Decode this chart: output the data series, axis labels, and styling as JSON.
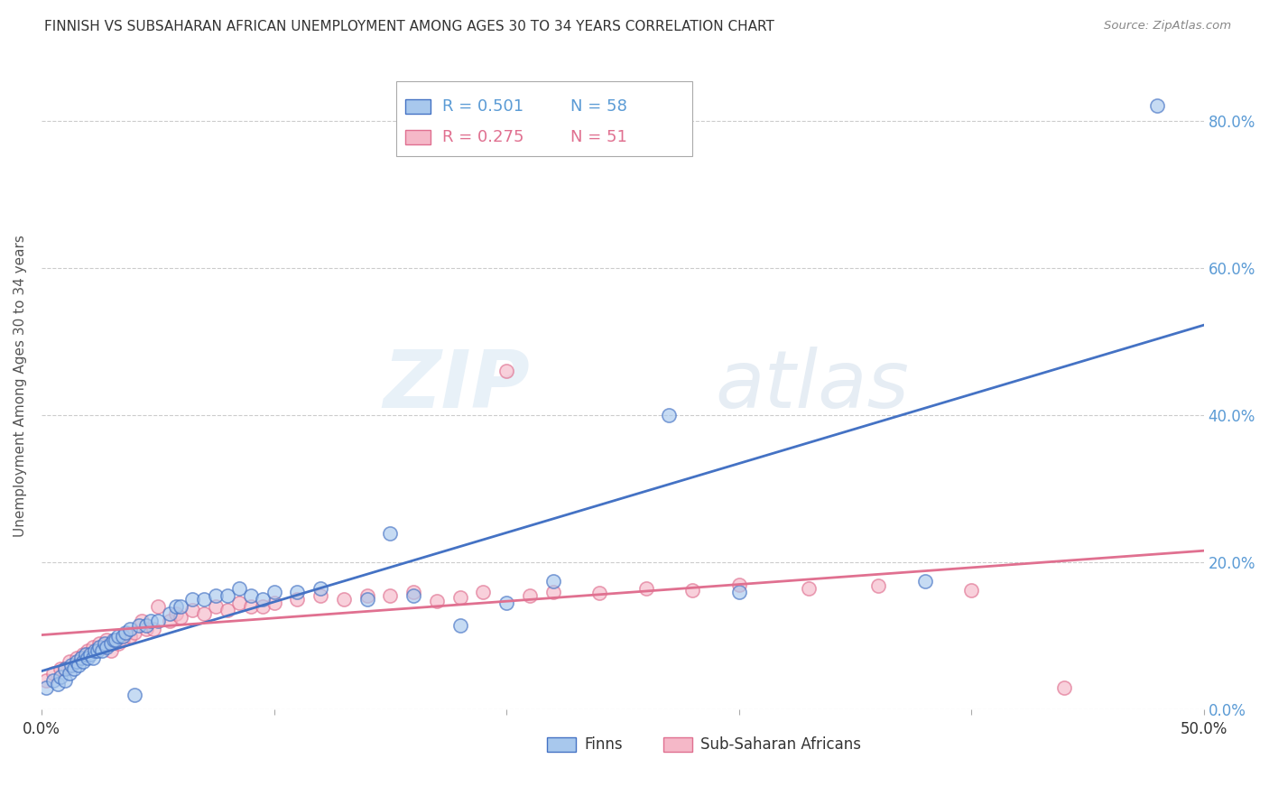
{
  "title": "FINNISH VS SUBSAHARAN AFRICAN UNEMPLOYMENT AMONG AGES 30 TO 34 YEARS CORRELATION CHART",
  "source": "Source: ZipAtlas.com",
  "ylabel": "Unemployment Among Ages 30 to 34 years",
  "xlim": [
    0.0,
    0.5
  ],
  "ylim": [
    0.0,
    0.88
  ],
  "xticks": [
    0.0,
    0.1,
    0.2,
    0.3,
    0.4,
    0.5
  ],
  "yticks": [
    0.0,
    0.2,
    0.4,
    0.6,
    0.8
  ],
  "legend_r_finns": "R = 0.501",
  "legend_n_finns": "N = 58",
  "legend_r_african": "R = 0.275",
  "legend_n_african": "N = 51",
  "color_finns": "#a8c8ed",
  "color_african": "#f5b8c8",
  "color_finns_line": "#4472c4",
  "color_african_line": "#e07090",
  "watermark_zip": "ZIP",
  "watermark_atlas": "atlas",
  "finns_x": [
    0.002,
    0.005,
    0.007,
    0.008,
    0.01,
    0.01,
    0.012,
    0.013,
    0.014,
    0.015,
    0.016,
    0.017,
    0.018,
    0.019,
    0.02,
    0.021,
    0.022,
    0.023,
    0.024,
    0.025,
    0.026,
    0.027,
    0.028,
    0.03,
    0.031,
    0.032,
    0.033,
    0.035,
    0.036,
    0.038,
    0.04,
    0.042,
    0.045,
    0.047,
    0.05,
    0.055,
    0.058,
    0.06,
    0.065,
    0.07,
    0.075,
    0.08,
    0.085,
    0.09,
    0.095,
    0.1,
    0.11,
    0.12,
    0.14,
    0.15,
    0.16,
    0.18,
    0.2,
    0.22,
    0.27,
    0.3,
    0.38,
    0.48
  ],
  "finns_y": [
    0.03,
    0.04,
    0.035,
    0.045,
    0.04,
    0.055,
    0.05,
    0.06,
    0.055,
    0.065,
    0.06,
    0.07,
    0.065,
    0.075,
    0.07,
    0.075,
    0.07,
    0.08,
    0.08,
    0.085,
    0.08,
    0.09,
    0.085,
    0.09,
    0.095,
    0.095,
    0.1,
    0.1,
    0.105,
    0.11,
    0.02,
    0.115,
    0.115,
    0.12,
    0.12,
    0.13,
    0.14,
    0.14,
    0.15,
    0.15,
    0.155,
    0.155,
    0.165,
    0.155,
    0.15,
    0.16,
    0.16,
    0.165,
    0.15,
    0.24,
    0.155,
    0.115,
    0.145,
    0.175,
    0.4,
    0.16,
    0.175,
    0.82
  ],
  "african_x": [
    0.002,
    0.005,
    0.008,
    0.01,
    0.012,
    0.015,
    0.018,
    0.02,
    0.022,
    0.025,
    0.028,
    0.03,
    0.033,
    0.035,
    0.038,
    0.04,
    0.043,
    0.045,
    0.048,
    0.05,
    0.055,
    0.058,
    0.06,
    0.065,
    0.07,
    0.075,
    0.08,
    0.085,
    0.09,
    0.095,
    0.1,
    0.11,
    0.12,
    0.13,
    0.14,
    0.15,
    0.16,
    0.17,
    0.18,
    0.19,
    0.2,
    0.21,
    0.22,
    0.24,
    0.26,
    0.28,
    0.3,
    0.33,
    0.36,
    0.4,
    0.44
  ],
  "african_y": [
    0.04,
    0.05,
    0.055,
    0.055,
    0.065,
    0.07,
    0.075,
    0.08,
    0.085,
    0.09,
    0.095,
    0.08,
    0.09,
    0.095,
    0.1,
    0.105,
    0.12,
    0.11,
    0.11,
    0.14,
    0.12,
    0.13,
    0.125,
    0.135,
    0.13,
    0.14,
    0.135,
    0.145,
    0.14,
    0.14,
    0.145,
    0.15,
    0.155,
    0.15,
    0.155,
    0.155,
    0.16,
    0.148,
    0.152,
    0.16,
    0.46,
    0.155,
    0.16,
    0.158,
    0.165,
    0.162,
    0.17,
    0.165,
    0.168,
    0.162,
    0.03
  ],
  "background_color": "#ffffff",
  "grid_color": "#cccccc"
}
